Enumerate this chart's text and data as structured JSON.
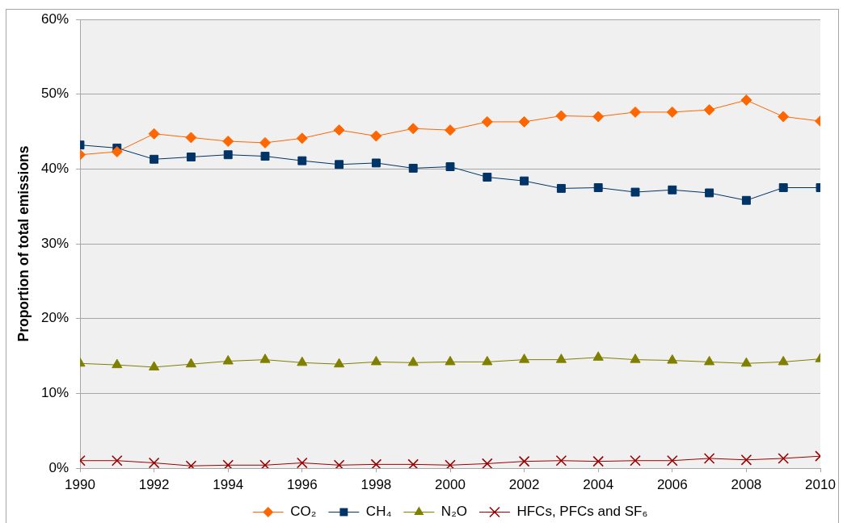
{
  "chart_data": {
    "type": "line",
    "ylabel": "Proportion of total emissions",
    "x": [
      1990,
      1991,
      1992,
      1993,
      1994,
      1995,
      1996,
      1997,
      1998,
      1999,
      2000,
      2001,
      2002,
      2003,
      2004,
      2005,
      2006,
      2007,
      2008,
      2009,
      2010
    ],
    "series": [
      {
        "name": "CO₂",
        "color": "#ff6600",
        "marker": "diamond",
        "values": [
          41.9,
          42.3,
          44.7,
          44.2,
          43.7,
          43.5,
          44.1,
          45.2,
          44.4,
          45.4,
          45.2,
          46.3,
          46.3,
          47.1,
          47.0,
          47.6,
          47.6,
          47.9,
          49.2,
          47.0,
          46.4
        ]
      },
      {
        "name": "CH₄",
        "color": "#003366",
        "marker": "square",
        "values": [
          43.2,
          42.8,
          41.3,
          41.6,
          41.9,
          41.7,
          41.1,
          40.6,
          40.8,
          40.1,
          40.3,
          38.9,
          38.4,
          37.4,
          37.5,
          36.9,
          37.2,
          36.8,
          35.8,
          37.5,
          37.5
        ]
      },
      {
        "name": "N₂O",
        "color": "#808000",
        "marker": "triangle",
        "values": [
          14.0,
          13.8,
          13.5,
          13.9,
          14.3,
          14.5,
          14.1,
          13.9,
          14.2,
          14.1,
          14.2,
          14.2,
          14.5,
          14.5,
          14.8,
          14.5,
          14.4,
          14.2,
          14.0,
          14.2,
          14.6
        ]
      },
      {
        "name": "HFCs, PFCs and SF₆",
        "color": "#990000",
        "marker": "cross",
        "values": [
          1.0,
          1.0,
          0.7,
          0.3,
          0.4,
          0.4,
          0.7,
          0.4,
          0.5,
          0.5,
          0.4,
          0.6,
          0.9,
          1.0,
          0.9,
          1.0,
          1.0,
          1.3,
          1.1,
          1.3,
          1.6
        ]
      }
    ],
    "xlim": [
      1990,
      2010
    ],
    "xticks": [
      1990,
      1992,
      1994,
      1996,
      1998,
      2000,
      2002,
      2004,
      2006,
      2008,
      2010
    ],
    "ylim": [
      0,
      60
    ],
    "yticks": [
      {
        "value": 0,
        "label": "0%"
      },
      {
        "value": 10,
        "label": "10%"
      },
      {
        "value": 20,
        "label": "20%"
      },
      {
        "value": 30,
        "label": "30%"
      },
      {
        "value": 40,
        "label": "40%"
      },
      {
        "value": 50,
        "label": "50%"
      },
      {
        "value": 60,
        "label": "60%"
      }
    ],
    "grid": "y",
    "legend": "bottom"
  }
}
